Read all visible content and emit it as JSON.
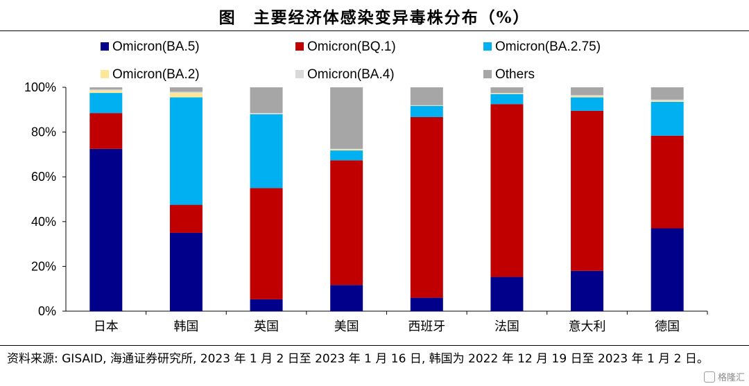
{
  "title": "图　主要经济体感染变异毒株分布（%）",
  "source_note": "资料来源: GISAID, 海通证券研究所, 2023 年 1 月 2 日至 2023 年 1 月 16 日, 韩国为 2022 年 12 月 19 日至 2023 年 1 月 2 日。",
  "watermark": "格隆汇",
  "chart_data": {
    "type": "bar",
    "stacked": true,
    "categories": [
      "日本",
      "韩国",
      "英国",
      "美国",
      "西班牙",
      "法国",
      "意大利",
      "德国"
    ],
    "ylim": [
      0,
      100
    ],
    "y_ticks": [
      "0%",
      "20%",
      "40%",
      "60%",
      "80%",
      "100%"
    ],
    "legend_position": "top",
    "series": [
      {
        "name": "Omicron(BA.5)",
        "color": "#00008B",
        "values": [
          72.5,
          35.0,
          5.3,
          11.7,
          6.0,
          15.3,
          18.0,
          37.0
        ]
      },
      {
        "name": "Omicron(BQ.1)",
        "color": "#C00000",
        "values": [
          16.0,
          12.5,
          49.7,
          55.7,
          80.7,
          77.2,
          71.5,
          41.4
        ]
      },
      {
        "name": "Omicron(BA.2.75)",
        "color": "#00B0F0",
        "values": [
          9.0,
          48.0,
          33.0,
          4.4,
          5.0,
          4.5,
          6.0,
          15.1
        ]
      },
      {
        "name": "Omicron(BA.2)",
        "color": "#FFE699",
        "values": [
          1.0,
          2.0,
          0.1,
          0.5,
          0.1,
          0.3,
          0.5,
          0.5
        ]
      },
      {
        "name": "Omicron(BA.4)",
        "color": "#D9D9D9",
        "values": [
          0.5,
          0.5,
          0.4,
          0.2,
          0.2,
          0.2,
          0.5,
          0.5
        ]
      },
      {
        "name": "Others",
        "color": "#A6A6A6",
        "values": [
          1.0,
          2.0,
          11.5,
          27.5,
          8.0,
          2.5,
          3.5,
          5.5
        ]
      }
    ]
  }
}
